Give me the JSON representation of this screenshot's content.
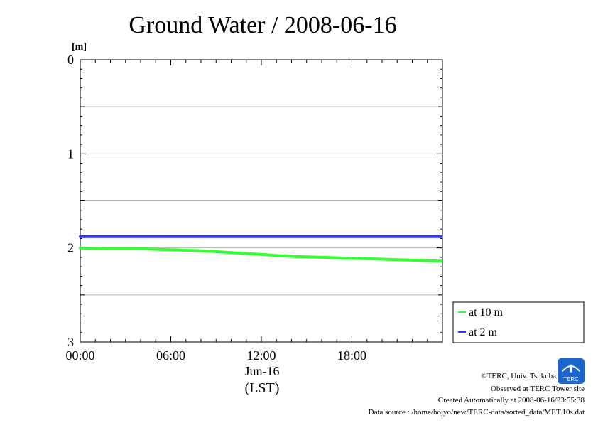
{
  "chart_data": {
    "type": "line",
    "title": "Ground Water / 2008-06-16",
    "ylabel": "[m]",
    "y_inverted": true,
    "ylim": [
      0,
      3
    ],
    "yticks": [
      "0",
      "1",
      "2",
      "3"
    ],
    "grid": true,
    "xlim_hours": [
      0,
      24
    ],
    "xticks": [
      "00:00",
      "06:00",
      "12:00",
      "18:00"
    ],
    "xdate_label": "Jun-16",
    "xunit_label": "(LST)",
    "legend_position": "bottom-right outside",
    "series": [
      {
        "name": "at 10 m",
        "color": "#33ff33",
        "x_hours": [
          0,
          2,
          4,
          6,
          8,
          10,
          12,
          14,
          16,
          18,
          20,
          22,
          23.9
        ],
        "values": [
          2.0,
          2.01,
          2.01,
          2.02,
          2.03,
          2.05,
          2.07,
          2.09,
          2.1,
          2.11,
          2.12,
          2.13,
          2.14
        ]
      },
      {
        "name": "at 2 m",
        "color": "#3333ff",
        "x_hours": [
          0,
          4,
          8,
          12,
          16,
          20,
          23.9
        ],
        "values": [
          1.88,
          1.88,
          1.88,
          1.88,
          1.88,
          1.88,
          1.88
        ]
      }
    ]
  },
  "logo": {
    "text": "TERC",
    "color": "#1a66cc"
  },
  "footer": {
    "copyright": "©TERC, Univ. Tsukuba",
    "observed": "Observed at TERC Tower site",
    "created": "Created Automatically at 2008-06-16/23:55:38",
    "source": "Data source : /home/hojyo/new/TERC-data/sorted_data/MET.10s.dat"
  }
}
